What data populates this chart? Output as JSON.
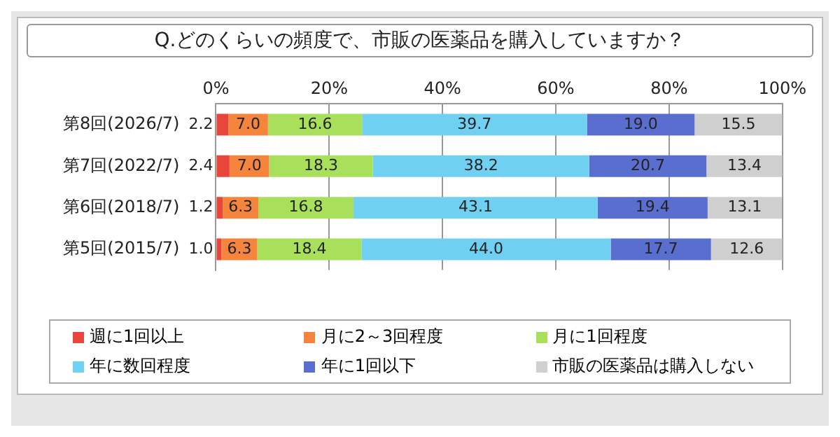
{
  "chart_data": {
    "type": "bar",
    "orientation": "horizontal",
    "stacked": true,
    "title": "Q.どのくらいの頻度で、市販の医薬品を購入していますか？",
    "categories": [
      "第8回(2026/7)",
      "第7回(2022/7)",
      "第6回(2018/7)",
      "第5回(2015/7)"
    ],
    "series": [
      {
        "name": "週に1回以上",
        "color": "#e8463a",
        "values": [
          2.2,
          2.4,
          1.2,
          1.0
        ],
        "value_labels": [
          "2.2",
          "2.4",
          "1.2",
          "1.0"
        ]
      },
      {
        "name": "月に2～3回程度",
        "color": "#f5843c",
        "values": [
          7.0,
          7.0,
          6.3,
          6.3
        ],
        "value_labels": [
          "7.0",
          "7.0",
          "6.3",
          "6.3"
        ]
      },
      {
        "name": "月に1回程度",
        "color": "#a8e05c",
        "values": [
          16.6,
          18.3,
          16.8,
          18.4
        ],
        "value_labels": [
          "16.6",
          "18.3",
          "16.8",
          "18.4"
        ]
      },
      {
        "name": "年に数回程度",
        "color": "#70d0f2",
        "values": [
          39.7,
          38.2,
          43.1,
          44.0
        ],
        "value_labels": [
          "39.7",
          "38.2",
          "43.1",
          "44.0"
        ]
      },
      {
        "name": "年に1回以下",
        "color": "#5a6ed0",
        "values": [
          19.0,
          20.7,
          19.4,
          17.7
        ],
        "value_labels": [
          "19.0",
          "20.7",
          "19.4",
          "17.7"
        ]
      },
      {
        "name": "市販の医薬品は購入しない",
        "color": "#cfcfcf",
        "values": [
          15.5,
          13.4,
          13.1,
          12.6
        ],
        "value_labels": [
          "15.5",
          "13.4",
          "13.1",
          "12.6"
        ]
      }
    ],
    "xlim": [
      0,
      100
    ],
    "xticks": [
      {
        "value": 0,
        "label": "0%"
      },
      {
        "value": 20,
        "label": "20%"
      },
      {
        "value": 40,
        "label": "40%"
      },
      {
        "value": 60,
        "label": "60%"
      },
      {
        "value": 80,
        "label": "80%"
      },
      {
        "value": 100,
        "label": "100%"
      }
    ],
    "grid": "x",
    "legend": "bottom"
  }
}
